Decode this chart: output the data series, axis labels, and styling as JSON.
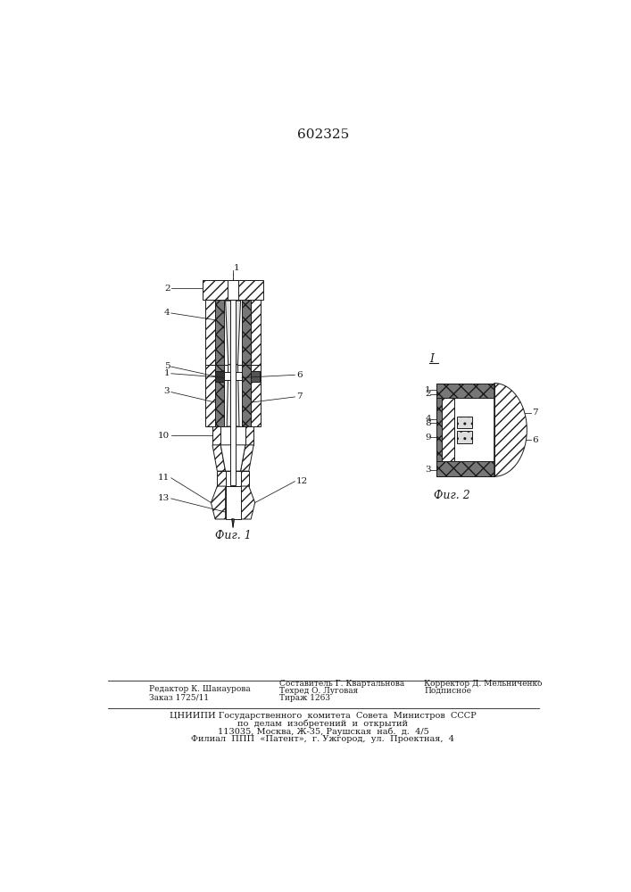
{
  "patent_number": "602325",
  "fig1_caption": "Фиг. 1",
  "fig2_caption": "Фиг. 2",
  "fig2_label": "I",
  "editor_line1": "Редактор К. Шанаурова",
  "editor_line2": "Заказ 1725/11",
  "tech_line1": "Составитель Г. Квартальнова",
  "tech_line2": "Техред О. Луговая",
  "tech_line3": "Тираж 1263",
  "corr_line1": "Корректор Д. Мельниченко",
  "corr_line2": "Подписное",
  "org_line1": "ЦНИИПИ Государственного  комитета  Совета  Министров  СССР",
  "org_line2": "по  делам  изобретений  и  открытий",
  "org_line3": "113035, Москва, Ж-35, Раушская  наб.  д.  4/5",
  "org_line4": "Филиал  ППП  «Патент»,  г. Ужгород,  ул.  Проектная,  4",
  "bg_color": "#ffffff",
  "line_color": "#1a1a1a"
}
